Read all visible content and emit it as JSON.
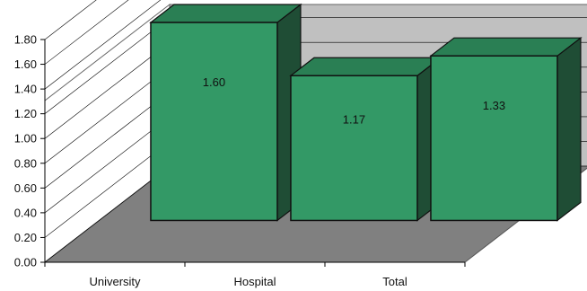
{
  "chart_data": {
    "type": "bar",
    "style": "3d",
    "categories": [
      "University",
      "Hospital",
      "Total"
    ],
    "values": [
      1.6,
      1.17,
      1.33
    ],
    "data_labels": [
      "1.60",
      "1.17",
      "1.33"
    ],
    "yticks": [
      "0.00",
      "0.20",
      "0.40",
      "0.60",
      "0.80",
      "1.00",
      "1.20",
      "1.40",
      "1.60",
      "1.80"
    ],
    "ylim": [
      0,
      1.8
    ],
    "grid": true,
    "legend": "none",
    "title": "",
    "xlabel": "",
    "ylabel": "",
    "colors": {
      "bar_front": "#339966",
      "bar_top": "#2a7f54",
      "bar_side": "#1f4d35",
      "back_wall": "#c0c0c0",
      "side_wall": "#ffffff",
      "floor": "#808080",
      "gridline": "#000000"
    }
  }
}
